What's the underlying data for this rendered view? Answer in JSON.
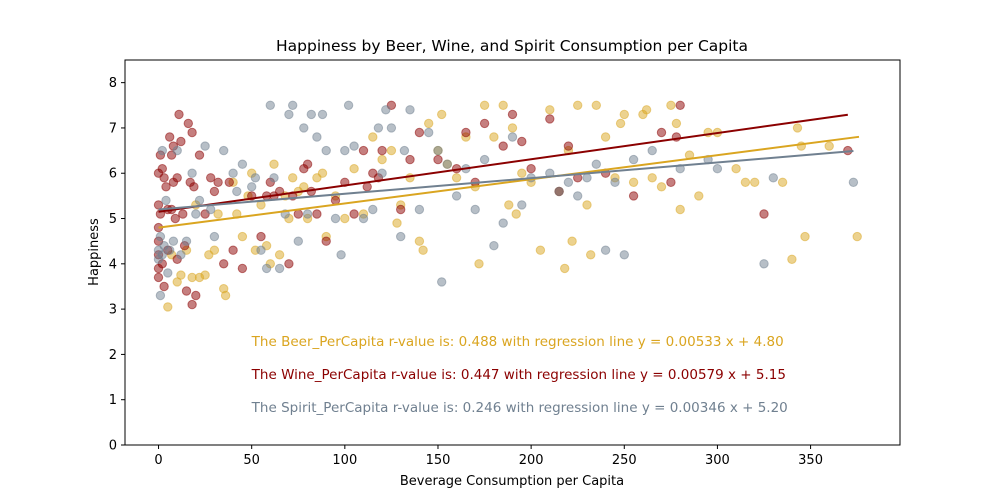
{
  "chart_data": {
    "type": "scatter",
    "title": "Happiness by Beer, Wine, and Spirit Consumption per Capita",
    "xlabel": "Beverage Consumption per Capita",
    "ylabel": "Happiness",
    "xlim": [
      -18,
      398
    ],
    "ylim": [
      0,
      8.5
    ],
    "xticks": [
      "0",
      "50",
      "100",
      "150",
      "200",
      "250",
      "300",
      "350"
    ],
    "yticks": [
      "0",
      "1",
      "2",
      "3",
      "4",
      "5",
      "6",
      "7",
      "8"
    ],
    "grid": false,
    "point_opacity": 0.5,
    "series": [
      {
        "name": "Beer_PerCapita",
        "color": "#DAA520",
        "regression": {
          "slope": 0.00533,
          "intercept": 4.8,
          "x_range": [
            0,
            376
          ]
        },
        "annotation": "The Beer_PerCapita r-value is: 0.488 with regression line y = 0.00533 x + 4.80",
        "x": [
          5,
          7,
          10,
          12,
          15,
          18,
          20,
          22,
          25,
          27,
          30,
          32,
          35,
          36,
          40,
          42,
          45,
          48,
          50,
          52,
          55,
          58,
          60,
          62,
          65,
          68,
          70,
          72,
          75,
          78,
          80,
          85,
          88,
          90,
          95,
          100,
          105,
          110,
          115,
          120,
          125,
          128,
          130,
          135,
          140,
          142,
          145,
          150,
          152,
          155,
          160,
          165,
          170,
          172,
          175,
          180,
          185,
          188,
          190,
          192,
          195,
          200,
          205,
          210,
          215,
          218,
          220,
          222,
          225,
          230,
          232,
          235,
          240,
          245,
          248,
          250,
          255,
          260,
          262,
          265,
          270,
          275,
          278,
          280,
          285,
          290,
          295,
          300,
          310,
          315,
          320,
          335,
          340,
          343,
          345,
          347,
          360,
          375
        ],
        "y": [
          3.05,
          4.2,
          3.6,
          3.75,
          4.3,
          3.7,
          5.3,
          3.7,
          3.75,
          4.2,
          4.3,
          5.1,
          3.45,
          3.3,
          5.8,
          5.1,
          4.6,
          5.5,
          6.0,
          4.3,
          5.3,
          4.4,
          4.0,
          6.2,
          4.2,
          5.5,
          5.0,
          5.9,
          5.6,
          5.7,
          5.0,
          5.9,
          6.0,
          4.6,
          5.5,
          5.0,
          6.1,
          5.1,
          6.8,
          6.3,
          6.5,
          4.9,
          5.3,
          5.9,
          4.5,
          4.3,
          7.1,
          6.5,
          7.3,
          6.2,
          5.9,
          6.8,
          5.7,
          4.0,
          7.5,
          6.8,
          7.5,
          5.3,
          7.0,
          5.1,
          6.0,
          5.8,
          4.3,
          7.4,
          5.6,
          3.9,
          6.5,
          4.5,
          7.5,
          5.3,
          4.2,
          7.5,
          6.8,
          5.9,
          7.1,
          7.3,
          5.8,
          7.3,
          7.4,
          5.9,
          5.7,
          7.5,
          7.1,
          5.2,
          6.4,
          5.5,
          6.9,
          6.9,
          6.1,
          5.8,
          5.8,
          5.8,
          4.1,
          7.0,
          6.6,
          4.6,
          6.6,
          4.6
        ]
      },
      {
        "name": "Wine_PerCapita",
        "color": "#8B0000",
        "regression": {
          "slope": 0.00579,
          "intercept": 5.15,
          "x_range": [
            0,
            370
          ]
        },
        "annotation": "The Wine_PerCapita r-value is: 0.447 with regression line y = 0.00579 x + 5.15",
        "x": [
          0,
          0,
          0,
          0,
          0,
          0,
          0,
          1,
          1,
          2,
          2,
          3,
          3,
          4,
          5,
          5,
          6,
          7,
          7,
          8,
          8,
          9,
          10,
          10,
          11,
          12,
          13,
          14,
          15,
          16,
          17,
          18,
          18,
          19,
          20,
          22,
          25,
          28,
          30,
          32,
          35,
          38,
          40,
          45,
          50,
          55,
          58,
          60,
          62,
          65,
          70,
          72,
          75,
          78,
          80,
          82,
          85,
          90,
          95,
          100,
          105,
          110,
          112,
          115,
          118,
          120,
          125,
          130,
          135,
          140,
          150,
          160,
          165,
          170,
          175,
          185,
          190,
          195,
          200,
          210,
          215,
          220,
          225,
          240,
          255,
          270,
          275,
          278,
          280,
          325,
          370
        ],
        "y": [
          6.0,
          5.3,
          4.8,
          4.5,
          4.2,
          3.9,
          3.7,
          6.4,
          5.1,
          6.1,
          4.0,
          5.9,
          3.5,
          5.7,
          5.2,
          4.3,
          6.8,
          6.4,
          5.2,
          6.6,
          5.8,
          5.0,
          5.9,
          4.1,
          7.3,
          6.7,
          5.1,
          4.4,
          3.4,
          7.1,
          5.8,
          6.9,
          3.1,
          5.7,
          3.3,
          6.4,
          5.1,
          5.9,
          5.6,
          5.8,
          4.0,
          5.8,
          4.3,
          3.9,
          5.5,
          4.6,
          5.5,
          5.8,
          5.5,
          5.6,
          4.0,
          5.5,
          5.1,
          6.1,
          6.2,
          5.6,
          5.1,
          4.5,
          5.4,
          5.8,
          5.1,
          6.5,
          5.7,
          6.0,
          5.9,
          6.5,
          7.5,
          5.2,
          6.3,
          6.9,
          6.3,
          6.1,
          6.9,
          5.8,
          7.1,
          6.6,
          7.3,
          6.7,
          6.1,
          7.2,
          5.6,
          6.6,
          5.9,
          6.0,
          5.5,
          6.9,
          5.8,
          6.8,
          7.5,
          5.1,
          6.5
        ]
      },
      {
        "name": "Spirit_PerCapita",
        "color": "#708090",
        "regression": {
          "slope": 0.00346,
          "intercept": 5.2,
          "x_range": [
            0,
            373
          ]
        },
        "annotation": "The Spirit_PerCapita r-value is: 0.246 with regression line y = 0.00346 x + 5.20",
        "x": [
          0,
          0,
          1,
          1,
          2,
          2,
          3,
          4,
          5,
          6,
          8,
          10,
          12,
          15,
          18,
          20,
          22,
          25,
          28,
          30,
          35,
          40,
          42,
          45,
          50,
          52,
          55,
          58,
          60,
          62,
          65,
          68,
          70,
          72,
          75,
          78,
          80,
          82,
          85,
          88,
          90,
          95,
          98,
          100,
          102,
          105,
          110,
          115,
          118,
          120,
          122,
          125,
          130,
          132,
          135,
          140,
          145,
          150,
          152,
          155,
          160,
          165,
          170,
          175,
          180,
          185,
          190,
          195,
          200,
          210,
          215,
          220,
          225,
          230,
          235,
          240,
          245,
          250,
          255,
          265,
          280,
          295,
          300,
          325,
          330,
          373
        ],
        "y": [
          4.3,
          4.1,
          4.6,
          3.3,
          4.2,
          6.5,
          4.4,
          5.4,
          3.8,
          4.3,
          4.5,
          6.5,
          4.2,
          4.5,
          6.0,
          5.1,
          5.4,
          6.6,
          5.2,
          4.6,
          6.5,
          6.0,
          5.6,
          6.2,
          5.7,
          5.9,
          4.3,
          3.9,
          7.5,
          5.9,
          3.9,
          5.1,
          7.3,
          7.5,
          4.5,
          7.0,
          5.1,
          7.3,
          6.8,
          7.3,
          6.5,
          5.0,
          4.2,
          6.5,
          7.5,
          6.6,
          5.0,
          5.2,
          7.0,
          6.0,
          7.4,
          7.0,
          4.6,
          6.5,
          7.4,
          5.2,
          6.9,
          6.5,
          3.6,
          6.2,
          5.5,
          6.1,
          5.2,
          6.3,
          4.4,
          4.9,
          6.8,
          5.3,
          5.9,
          6.0,
          5.6,
          5.8,
          5.5,
          5.9,
          6.2,
          4.3,
          5.8,
          4.2,
          6.3,
          6.5,
          6.1,
          6.3,
          6.1,
          4.0,
          5.9,
          5.8
        ]
      }
    ]
  }
}
